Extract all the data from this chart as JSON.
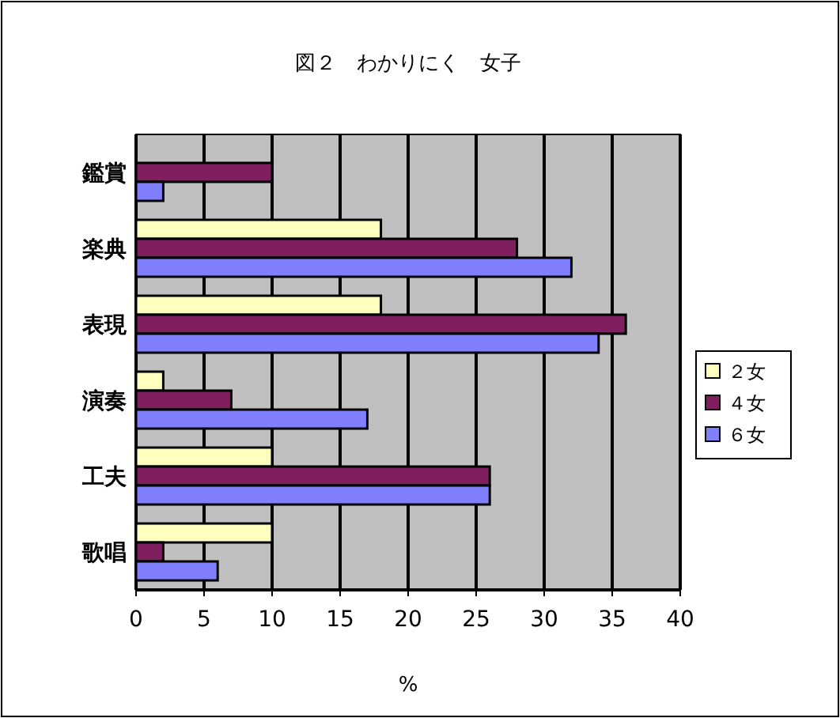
{
  "chart_data": {
    "type": "bar",
    "orientation": "horizontal",
    "title": "図２　わかりにく　女子",
    "xlabel": "%",
    "categories": [
      "鑑賞",
      "楽典",
      "表現",
      "演奏",
      "工夫",
      "歌唱"
    ],
    "series": [
      {
        "name": "２女",
        "color": "#ffffc0",
        "values": [
          0,
          18,
          18,
          2,
          10,
          10
        ]
      },
      {
        "name": "４女",
        "color": "#7f1f5f",
        "values": [
          10,
          28,
          36,
          7,
          26,
          2
        ]
      },
      {
        "name": "６女",
        "color": "#8080ff",
        "values": [
          2,
          32,
          34,
          17,
          26,
          6
        ]
      }
    ],
    "xlim": [
      0,
      40
    ],
    "xticks": [
      0,
      5,
      10,
      15,
      20,
      25,
      30,
      35,
      40
    ],
    "grid": "x",
    "legend": "right"
  }
}
